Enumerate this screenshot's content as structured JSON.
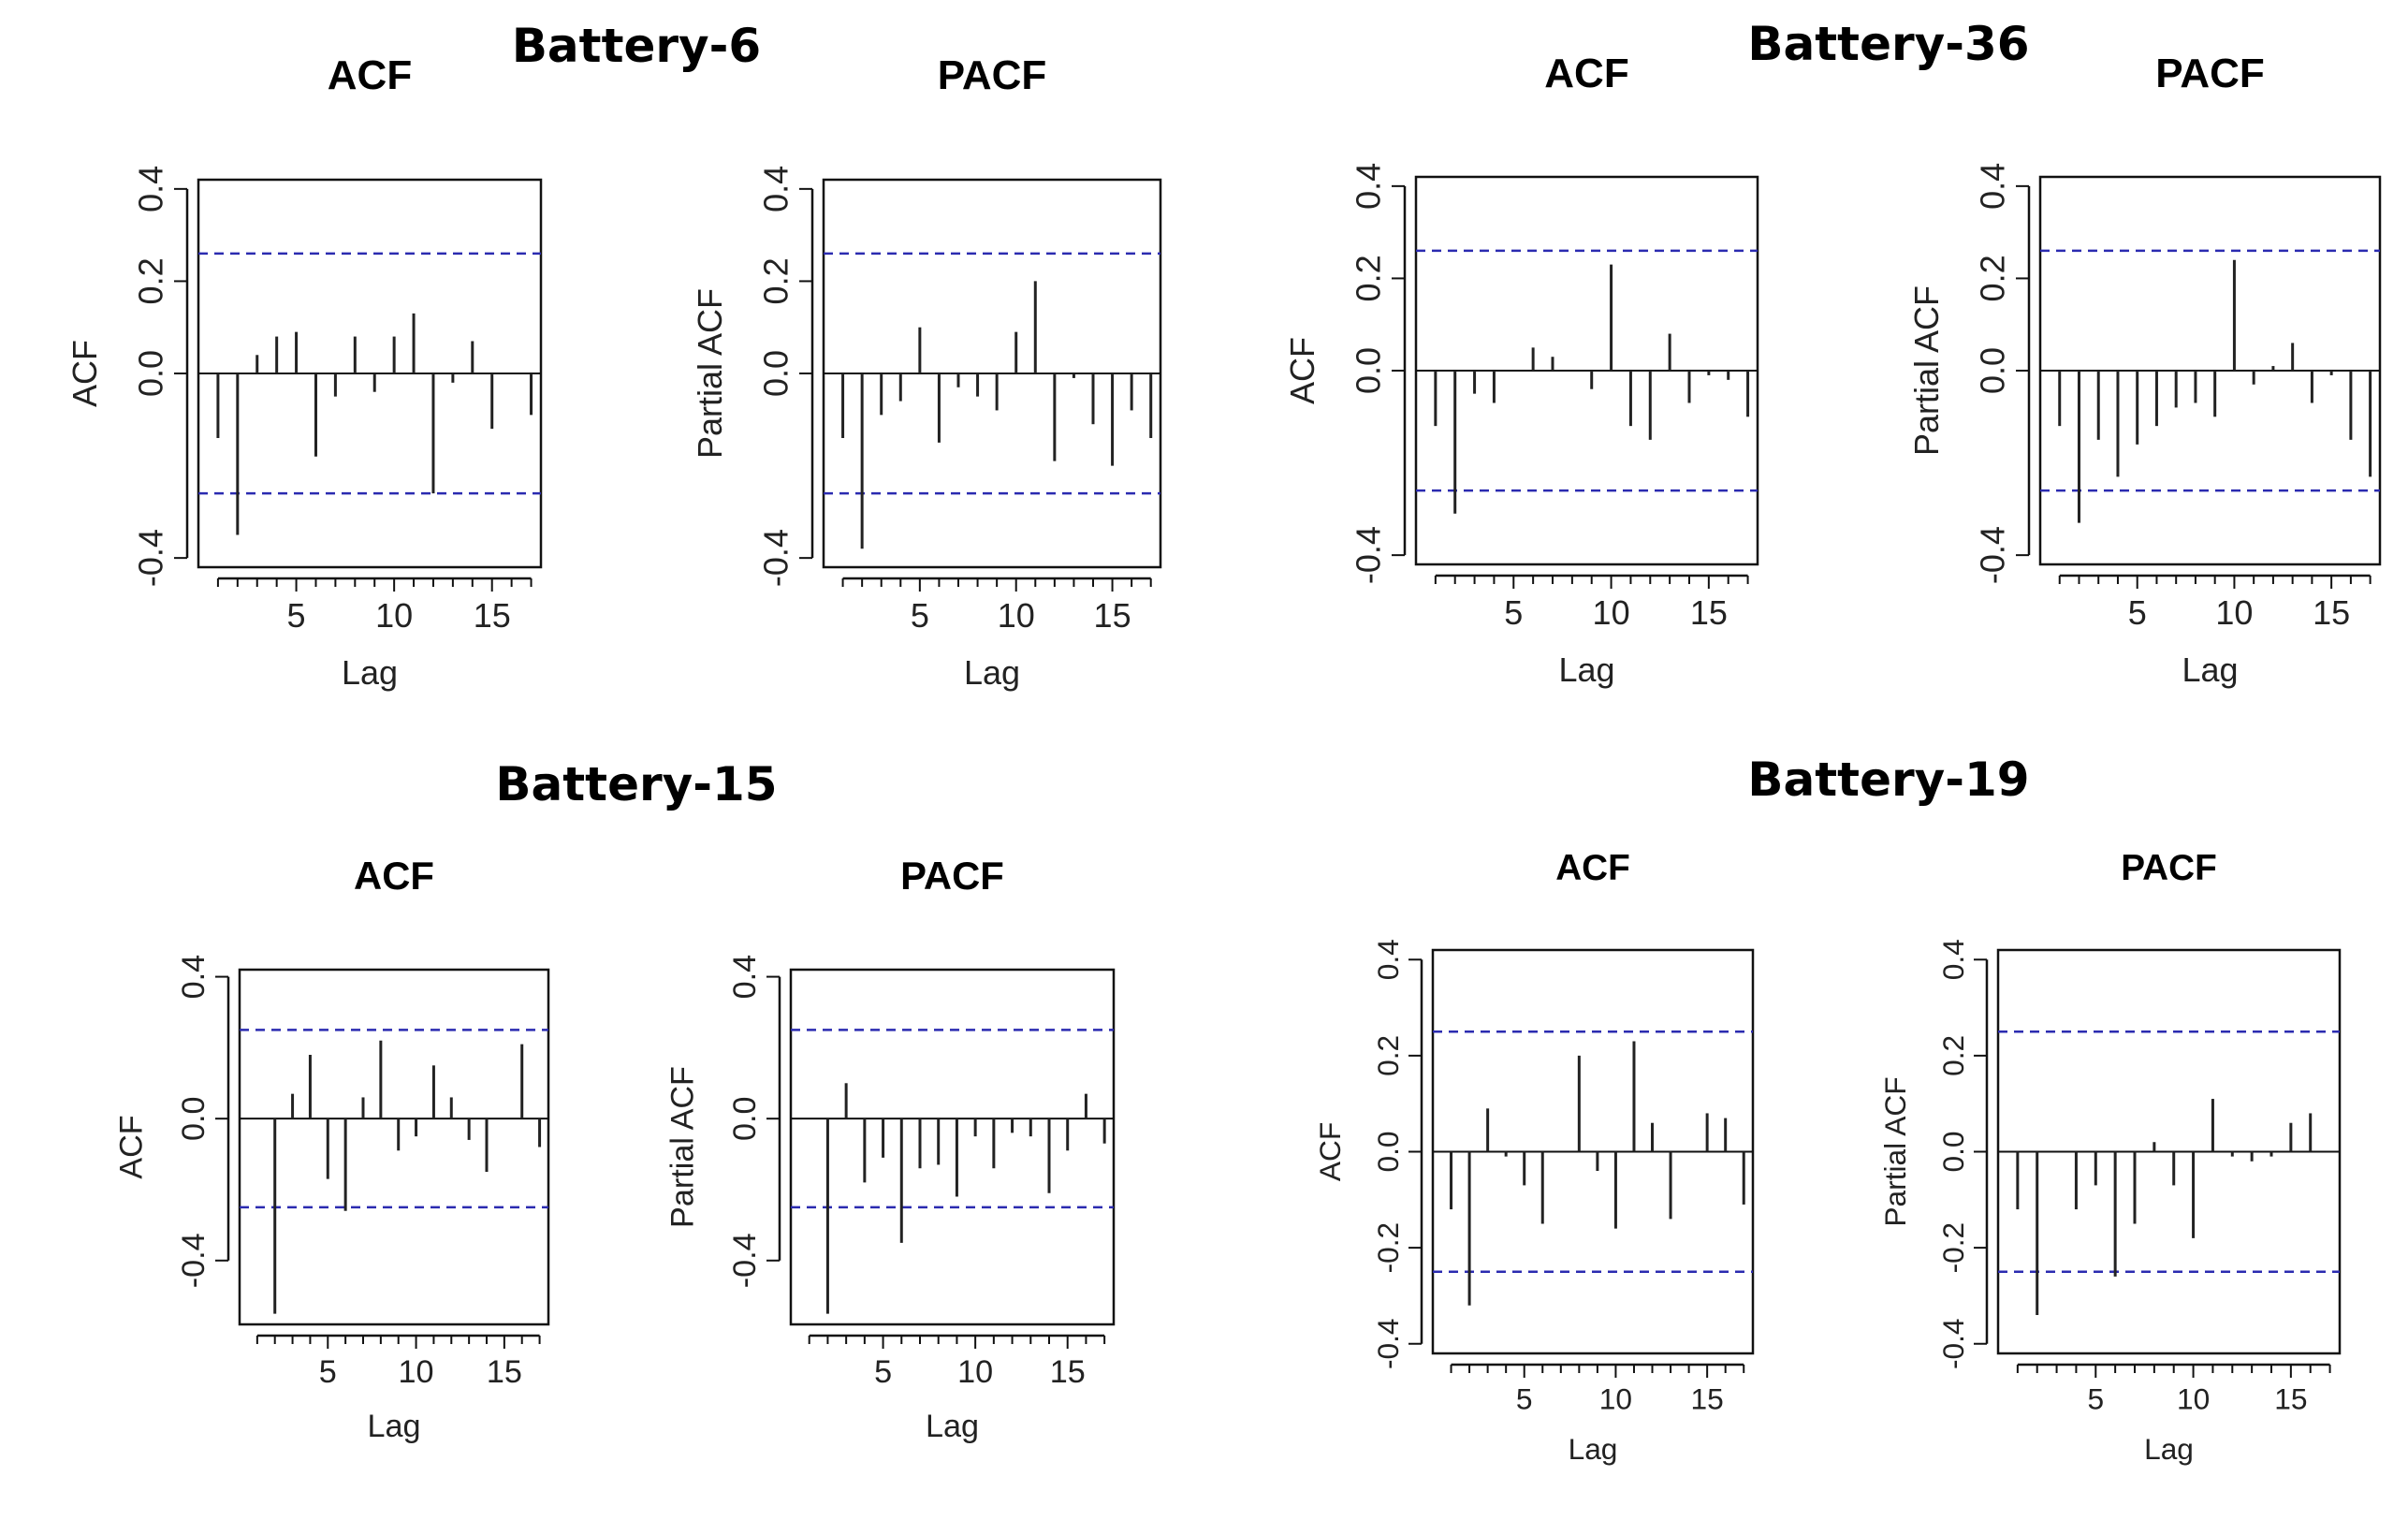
{
  "figure": {
    "groups": [
      {
        "title": "Battery-6"
      },
      {
        "title": "Battery-36"
      },
      {
        "title": "Battery-15"
      },
      {
        "title": "Battery-19"
      }
    ]
  },
  "chart_data": [
    {
      "type": "bar",
      "group": "Battery-6",
      "title": "ACF",
      "xlabel": "Lag",
      "ylabel": "ACF",
      "xlim": [
        0,
        17.5
      ],
      "ylim": [
        -0.42,
        0.42
      ],
      "conf_limit": 0.26,
      "xticks": [
        5,
        10,
        15
      ],
      "yticks": [
        -0.4,
        0.0,
        0.2,
        0.4
      ],
      "lags": [
        1,
        2,
        3,
        4,
        5,
        6,
        7,
        8,
        9,
        10,
        11,
        12,
        13,
        14,
        15,
        16,
        17
      ],
      "values": [
        -0.14,
        -0.35,
        0.04,
        0.08,
        0.09,
        -0.18,
        -0.05,
        0.08,
        -0.04,
        0.08,
        0.13,
        -0.26,
        -0.02,
        0.07,
        -0.12,
        0.0,
        -0.09
      ]
    },
    {
      "type": "bar",
      "group": "Battery-6",
      "title": "PACF",
      "xlabel": "Lag",
      "ylabel": "Partial ACF",
      "xlim": [
        0,
        17.5
      ],
      "ylim": [
        -0.42,
        0.42
      ],
      "conf_limit": 0.26,
      "xticks": [
        5,
        10,
        15
      ],
      "yticks": [
        -0.4,
        0.0,
        0.2,
        0.4
      ],
      "lags": [
        1,
        2,
        3,
        4,
        5,
        6,
        7,
        8,
        9,
        10,
        11,
        12,
        13,
        14,
        15,
        16,
        17
      ],
      "values": [
        -0.14,
        -0.38,
        -0.09,
        -0.06,
        0.1,
        -0.15,
        -0.03,
        -0.05,
        -0.08,
        0.09,
        0.2,
        -0.19,
        -0.01,
        -0.11,
        -0.2,
        -0.08,
        -0.14
      ]
    },
    {
      "type": "bar",
      "group": "Battery-36",
      "title": "ACF",
      "xlabel": "Lag",
      "ylabel": "ACF",
      "xlim": [
        0,
        17.5
      ],
      "ylim": [
        -0.42,
        0.42
      ],
      "conf_limit": 0.26,
      "xticks": [
        5,
        10,
        15
      ],
      "yticks": [
        -0.4,
        0.0,
        0.2,
        0.4
      ],
      "lags": [
        1,
        2,
        3,
        4,
        5,
        6,
        7,
        8,
        9,
        10,
        11,
        12,
        13,
        14,
        15,
        16,
        17
      ],
      "values": [
        -0.12,
        -0.31,
        -0.05,
        -0.07,
        0.0,
        0.05,
        0.03,
        0.0,
        -0.04,
        0.23,
        -0.12,
        -0.15,
        0.08,
        -0.07,
        -0.01,
        -0.02,
        -0.1
      ]
    },
    {
      "type": "bar",
      "group": "Battery-36",
      "title": "PACF",
      "xlabel": "Lag",
      "ylabel": "Partial ACF",
      "xlim": [
        0,
        17.5
      ],
      "ylim": [
        -0.42,
        0.42
      ],
      "conf_limit": 0.26,
      "xticks": [
        5,
        10,
        15
      ],
      "yticks": [
        -0.4,
        0.0,
        0.2,
        0.4
      ],
      "lags": [
        1,
        2,
        3,
        4,
        5,
        6,
        7,
        8,
        9,
        10,
        11,
        12,
        13,
        14,
        15,
        16,
        17
      ],
      "values": [
        -0.12,
        -0.33,
        -0.15,
        -0.23,
        -0.16,
        -0.12,
        -0.08,
        -0.07,
        -0.1,
        0.24,
        -0.03,
        0.01,
        0.06,
        -0.07,
        -0.01,
        -0.15,
        -0.23
      ]
    },
    {
      "type": "bar",
      "group": "Battery-15",
      "title": "ACF",
      "xlabel": "Lag",
      "ylabel": "ACF",
      "xlim": [
        0,
        17.5
      ],
      "ylim": [
        -0.58,
        0.42
      ],
      "conf_limit": 0.25,
      "xticks": [
        5,
        10,
        15
      ],
      "yticks": [
        -0.4,
        0.0,
        0.4
      ],
      "lags": [
        1,
        2,
        3,
        4,
        5,
        6,
        7,
        8,
        9,
        10,
        11,
        12,
        13,
        14,
        15,
        16,
        17
      ],
      "values": [
        0.0,
        -0.55,
        0.07,
        0.18,
        -0.17,
        -0.26,
        0.06,
        0.22,
        -0.09,
        -0.05,
        0.15,
        0.06,
        -0.06,
        -0.15,
        0.0,
        0.21,
        -0.08
      ]
    },
    {
      "type": "bar",
      "group": "Battery-15",
      "title": "PACF",
      "xlabel": "Lag",
      "ylabel": "Partial ACF",
      "xlim": [
        0,
        17.5
      ],
      "ylim": [
        -0.58,
        0.42
      ],
      "conf_limit": 0.25,
      "xticks": [
        5,
        10,
        15
      ],
      "yticks": [
        -0.4,
        0.0,
        0.4
      ],
      "lags": [
        1,
        2,
        3,
        4,
        5,
        6,
        7,
        8,
        9,
        10,
        11,
        12,
        13,
        14,
        15,
        16,
        17
      ],
      "values": [
        0.0,
        -0.55,
        0.1,
        -0.18,
        -0.11,
        -0.35,
        -0.14,
        -0.13,
        -0.22,
        -0.05,
        -0.14,
        -0.04,
        -0.05,
        -0.21,
        -0.09,
        0.07,
        -0.07
      ]
    },
    {
      "type": "bar",
      "group": "Battery-19",
      "title": "ACF",
      "xlabel": "Lag",
      "ylabel": "ACF",
      "xlim": [
        0,
        17.5
      ],
      "ylim": [
        -0.42,
        0.42
      ],
      "conf_limit": 0.25,
      "xticks": [
        5,
        10,
        15
      ],
      "yticks": [
        -0.4,
        -0.2,
        0.0,
        0.2,
        0.4
      ],
      "lags": [
        1,
        2,
        3,
        4,
        5,
        6,
        7,
        8,
        9,
        10,
        11,
        12,
        13,
        14,
        15,
        16,
        17
      ],
      "values": [
        -0.12,
        -0.32,
        0.09,
        -0.01,
        -0.07,
        -0.15,
        0.0,
        0.2,
        -0.04,
        -0.16,
        0.23,
        0.06,
        -0.14,
        0.0,
        0.08,
        0.07,
        -0.11
      ]
    },
    {
      "type": "bar",
      "group": "Battery-19",
      "title": "PACF",
      "xlabel": "Lag",
      "ylabel": "Partial ACF",
      "xlim": [
        0,
        17.5
      ],
      "ylim": [
        -0.42,
        0.42
      ],
      "conf_limit": 0.25,
      "xticks": [
        5,
        10,
        15
      ],
      "yticks": [
        -0.4,
        -0.2,
        0.0,
        0.2,
        0.4
      ],
      "lags": [
        1,
        2,
        3,
        4,
        5,
        6,
        7,
        8,
        9,
        10,
        11,
        12,
        13,
        14,
        15,
        16,
        17
      ],
      "values": [
        -0.12,
        -0.34,
        0.0,
        -0.12,
        -0.07,
        -0.26,
        -0.15,
        0.02,
        -0.07,
        -0.18,
        0.11,
        -0.01,
        -0.02,
        -0.01,
        0.06,
        0.08,
        0.0
      ]
    }
  ]
}
